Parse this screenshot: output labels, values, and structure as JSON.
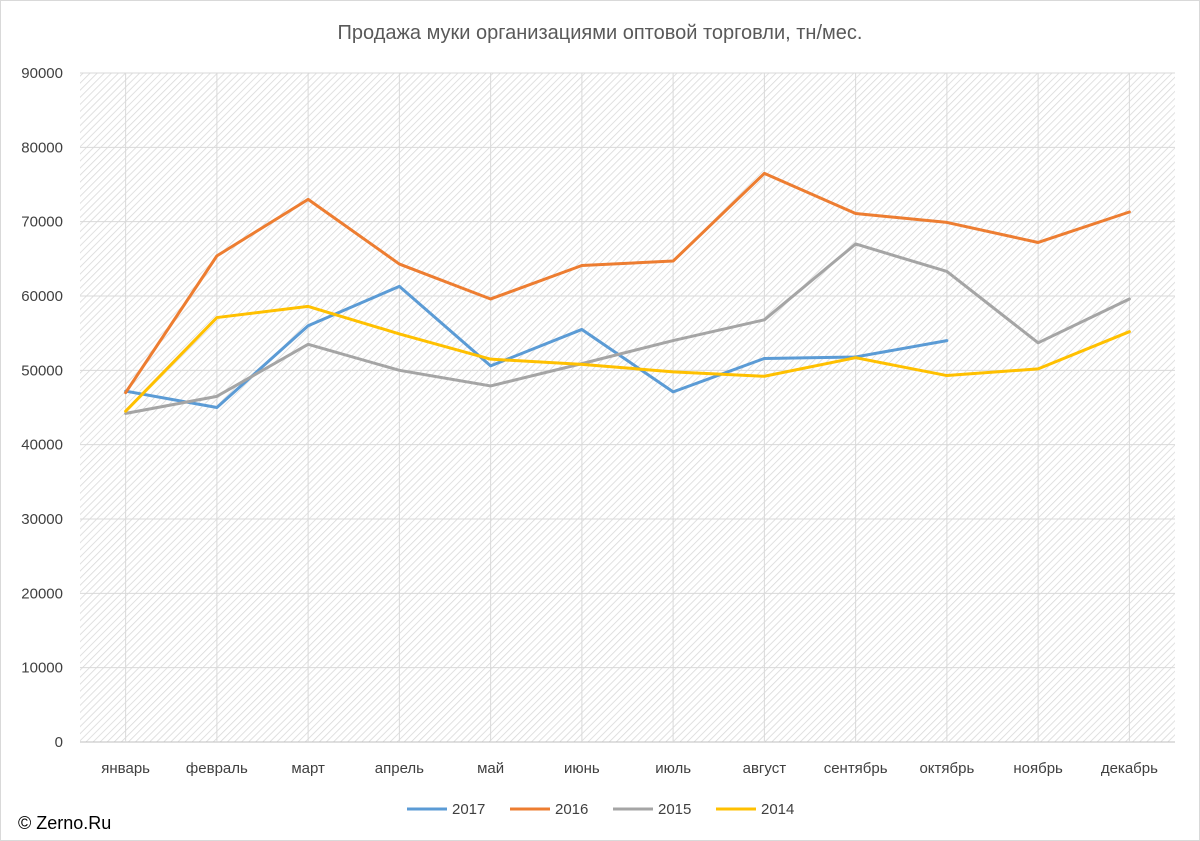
{
  "chart_data": {
    "type": "line",
    "title": "Продажа муки организациями оптовой торговли, тн/мес.",
    "xlabel": "",
    "ylabel": "",
    "ylim": [
      0,
      90000
    ],
    "yticks": [
      0,
      10000,
      20000,
      30000,
      40000,
      50000,
      60000,
      70000,
      80000,
      90000
    ],
    "ytick_labels": [
      "0",
      "10000",
      "20000",
      "30000",
      "40000",
      "50000",
      "60000",
      "70000",
      "80000",
      "90000"
    ],
    "categories": [
      "январь",
      "февраль",
      "март",
      "апрель",
      "май",
      "июнь",
      "июль",
      "август",
      "сентябрь",
      "октябрь",
      "ноябрь",
      "декабрь"
    ],
    "grid": true,
    "legend_position": "bottom",
    "series": [
      {
        "name": "2017",
        "color": "#5B9BD5",
        "values": [
          47200,
          45000,
          56000,
          61300,
          50600,
          55500,
          47100,
          51600,
          51800,
          54000,
          null,
          null
        ]
      },
      {
        "name": "2016",
        "color": "#ED7D31",
        "values": [
          47000,
          65400,
          73000,
          64300,
          59600,
          64100,
          64700,
          76500,
          71100,
          69900,
          67200,
          71300
        ]
      },
      {
        "name": "2015",
        "color": "#A5A5A5",
        "values": [
          44200,
          46500,
          53500,
          50000,
          47900,
          50900,
          54000,
          56800,
          67000,
          63300,
          53700,
          59600
        ]
      },
      {
        "name": "2014",
        "color": "#FFC000",
        "values": [
          44500,
          57100,
          58600,
          54900,
          51500,
          50800,
          49800,
          49200,
          51700,
          49300,
          50200,
          55200
        ]
      }
    ]
  },
  "copyright": "© Zerno.Ru"
}
